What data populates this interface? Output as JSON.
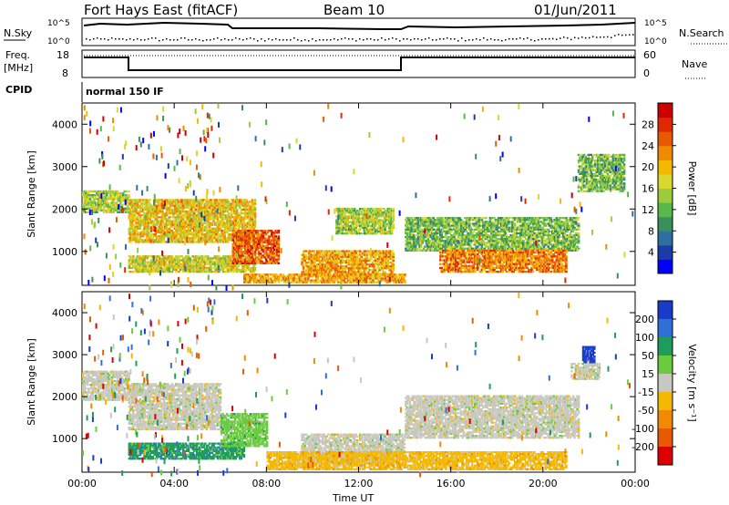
{
  "header": {
    "station": "Fort Hays East (fitACF)",
    "beam": "Beam 10",
    "date": "01/Jun/2011"
  },
  "status_panels": {
    "nsky_label": "N.Sky",
    "nsearch_label": "N.Search",
    "freq_label_line1": "Freq.",
    "freq_label_line2": "[MHz]",
    "nave_label": "Nave",
    "cpid_label": "CPID",
    "cpid_value": "normal 150 IF",
    "noise_ticks_left": [
      "10^5",
      "10^0"
    ],
    "noise_ticks_right": [
      "10^5",
      "10^0"
    ],
    "freq_ticks": [
      "18",
      "8"
    ],
    "nave_ticks": [
      "60",
      "0"
    ]
  },
  "chart_data": [
    {
      "type": "heatmap",
      "panel": "power",
      "title": "",
      "ylabel": "Slant Range [km]",
      "xlabel": "",
      "x_ticks": [
        "00:00",
        "04:00",
        "08:00",
        "12:00",
        "16:00",
        "20:00",
        "00:00"
      ],
      "y_ticks": [
        1000,
        2000,
        3000,
        4000
      ],
      "ylim": [
        200,
        4500
      ],
      "xlim_hours": [
        0,
        24
      ],
      "colorbar": {
        "label": "Power [dB]",
        "ticks": [
          "4",
          "8",
          "12",
          "16",
          "20",
          "24",
          "28"
        ],
        "colors": [
          "#0000ff",
          "#1c3aa8",
          "#2e6fa0",
          "#3b8f5a",
          "#58b84a",
          "#9ccc3c",
          "#d8d830",
          "#f5b800",
          "#f08a00",
          "#e85a00",
          "#e02800",
          "#cc0000"
        ]
      },
      "regions": [
        {
          "t": [
            0.0,
            2.0
          ],
          "r": [
            1900,
            2400
          ],
          "p": 14
        },
        {
          "t": [
            2.0,
            7.5
          ],
          "r": [
            1200,
            2200
          ],
          "p": 18
        },
        {
          "t": [
            2.0,
            7.5
          ],
          "r": [
            500,
            900
          ],
          "p": 16
        },
        {
          "t": [
            6.5,
            8.5
          ],
          "r": [
            700,
            1500
          ],
          "p": 24
        },
        {
          "t": [
            9.5,
            13.5
          ],
          "r": [
            400,
            1000
          ],
          "p": 20
        },
        {
          "t": [
            11.0,
            13.5
          ],
          "r": [
            1400,
            2000
          ],
          "p": 14
        },
        {
          "t": [
            14.0,
            21.5
          ],
          "r": [
            1000,
            1800
          ],
          "p": 12
        },
        {
          "t": [
            15.5,
            21.0
          ],
          "r": [
            500,
            1000
          ],
          "p": 22
        },
        {
          "t": [
            21.5,
            23.5
          ],
          "r": [
            2400,
            3300
          ],
          "p": 12
        },
        {
          "t": [
            7.0,
            14.0
          ],
          "r": [
            250,
            450
          ],
          "p": 20
        }
      ]
    },
    {
      "type": "heatmap",
      "panel": "velocity",
      "title": "",
      "ylabel": "Slant Range [km]",
      "xlabel": "Time UT",
      "x_ticks": [
        "00:00",
        "04:00",
        "08:00",
        "12:00",
        "16:00",
        "20:00",
        "00:00"
      ],
      "y_ticks": [
        1000,
        2000,
        3000,
        4000
      ],
      "ylim": [
        200,
        4500
      ],
      "xlim_hours": [
        0,
        24
      ],
      "colorbar": {
        "label": "Velocity [m s⁻¹]",
        "ticks": [
          "200",
          "100",
          "50",
          "15",
          "-15",
          "-50",
          "-100",
          "-200"
        ],
        "colors": [
          "#1a3acc",
          "#2e6fd8",
          "#1e9c5a",
          "#6acc3c",
          "#c8c8c0",
          "#f5b800",
          "#f08a00",
          "#e85a00",
          "#dd0000"
        ]
      },
      "regions": [
        {
          "t": [
            0.0,
            2.0
          ],
          "r": [
            1900,
            2600
          ],
          "v": "gray"
        },
        {
          "t": [
            2.0,
            6.0
          ],
          "r": [
            1200,
            2300
          ],
          "v": "gray"
        },
        {
          "t": [
            2.0,
            7.0
          ],
          "r": [
            500,
            900
          ],
          "v": "green"
        },
        {
          "t": [
            6.0,
            8.0
          ],
          "r": [
            800,
            1600
          ],
          "v": "lightgreen"
        },
        {
          "t": [
            9.5,
            14.0
          ],
          "r": [
            400,
            1100
          ],
          "v": "gray"
        },
        {
          "t": [
            14.0,
            21.5
          ],
          "r": [
            1000,
            2000
          ],
          "v": "gray"
        },
        {
          "t": [
            8.0,
            21.0
          ],
          "r": [
            250,
            700
          ],
          "v": "orange"
        },
        {
          "t": [
            21.2,
            22.4
          ],
          "r": [
            2400,
            2800
          ],
          "v": "gray"
        },
        {
          "t": [
            21.7,
            22.2
          ],
          "r": [
            2800,
            3200
          ],
          "v": "blue"
        }
      ]
    }
  ]
}
